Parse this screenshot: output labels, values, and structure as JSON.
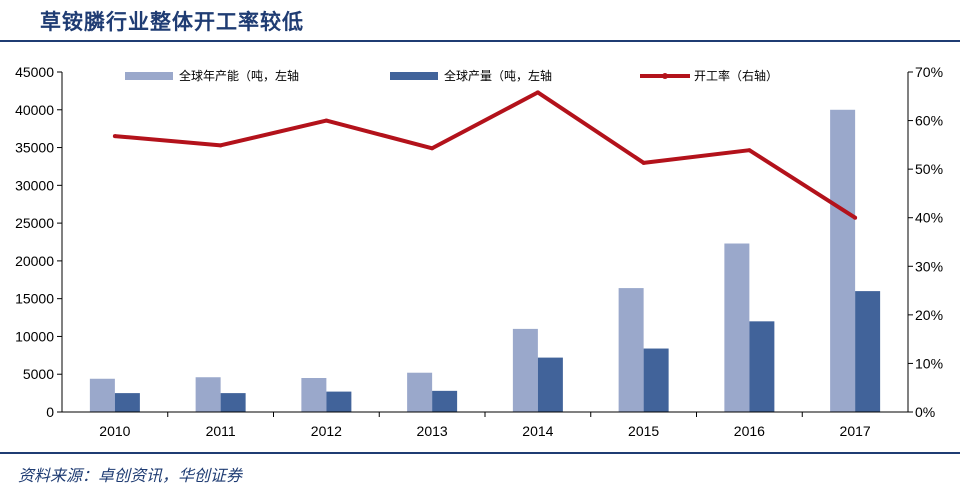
{
  "title": "草铵膦行业整体开工率较低",
  "source": "资料来源：卓创资讯，华创证券",
  "colors": {
    "capacity": "#9aa8cb",
    "production": "#41639a",
    "rate": "#b3121b",
    "accent": "#1f3c73"
  },
  "chart_data": {
    "type": "bar",
    "title": "草铵膦行业整体开工率较低",
    "categories": [
      "2010",
      "2011",
      "2012",
      "2013",
      "2014",
      "2015",
      "2016",
      "2017"
    ],
    "series": [
      {
        "name": "全球年产能（吨，左轴",
        "type": "bar",
        "axis": "left",
        "values": [
          4400,
          4600,
          4500,
          5200,
          11000,
          16400,
          22300,
          40000
        ]
      },
      {
        "name": "全球产量（吨，左轴",
        "type": "bar",
        "axis": "left",
        "values": [
          2500,
          2500,
          2700,
          2800,
          7200,
          8400,
          12000,
          16000
        ]
      },
      {
        "name": "开工率（右轴）",
        "type": "line",
        "axis": "right",
        "values": [
          56.8,
          54.9,
          60.0,
          54.3,
          65.8,
          51.3,
          53.9,
          40.0
        ]
      }
    ],
    "y_left": {
      "min": 0,
      "max": 45000,
      "ticks": [
        0,
        5000,
        10000,
        15000,
        20000,
        25000,
        30000,
        35000,
        40000,
        45000
      ]
    },
    "y_right": {
      "min": 0,
      "max": 70,
      "unit": "%",
      "ticks": [
        "0%",
        "10%",
        "20%",
        "30%",
        "40%",
        "50%",
        "60%",
        "70%"
      ]
    },
    "legend_position": "top",
    "grid": false
  }
}
